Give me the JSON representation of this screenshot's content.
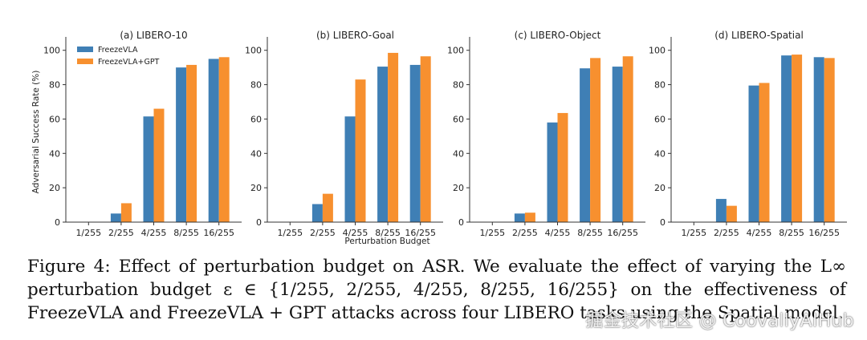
{
  "figure": {
    "caption_prefix": "Figure 4:",
    "caption_body": "Effect of perturbation budget on ASR. We evaluate the effect of varying the L∞ perturbation budget ε ∈ {1/255, 2/255, 4/255, 8/255, 16/255} on the effectiveness of FreezeVLA and FreezeVLA + GPT attacks across four LIBERO tasks using the Spatial model.",
    "watermark": "掘金技术社区 @ CoovallyAIHub"
  },
  "colors": {
    "freezevla": "#3f7fb5",
    "freezevla_gpt": "#f7902f",
    "axis": "#333333"
  },
  "chart_data": [
    {
      "type": "bar",
      "title": "(a) LIBERO-10",
      "xlabel": "",
      "ylabel": "Adversarial Success Rate (%)",
      "categories": [
        "1/255",
        "2/255",
        "4/255",
        "8/255",
        "16/255"
      ],
      "ylim": [
        0,
        105
      ],
      "yticks": [
        0,
        20,
        40,
        60,
        80,
        100
      ],
      "legend_position": "top-left",
      "series": [
        {
          "name": "FreezeVLA",
          "values": [
            0,
            5,
            61.5,
            90,
            95
          ]
        },
        {
          "name": "FreezeVLA+GPT",
          "values": [
            0,
            11,
            66,
            91.5,
            96
          ]
        }
      ]
    },
    {
      "type": "bar",
      "title": "(b) LIBERO-Goal",
      "xlabel": "Perturbation Budget",
      "ylabel": "",
      "categories": [
        "1/255",
        "2/255",
        "4/255",
        "8/255",
        "16/255"
      ],
      "ylim": [
        0,
        105
      ],
      "yticks": [
        0,
        20,
        40,
        60,
        80,
        100
      ],
      "series": [
        {
          "name": "FreezeVLA",
          "values": [
            0,
            10.5,
            61.5,
            90.5,
            91.5
          ]
        },
        {
          "name": "FreezeVLA+GPT",
          "values": [
            0,
            16.5,
            83,
            98.5,
            96.5
          ]
        }
      ]
    },
    {
      "type": "bar",
      "title": "(c) LIBERO-Object",
      "xlabel": "",
      "ylabel": "",
      "categories": [
        "1/255",
        "2/255",
        "4/255",
        "8/255",
        "16/255"
      ],
      "ylim": [
        0,
        105
      ],
      "yticks": [
        0,
        20,
        40,
        60,
        80,
        100
      ],
      "series": [
        {
          "name": "FreezeVLA",
          "values": [
            0,
            5,
            58,
            89.5,
            90.5
          ]
        },
        {
          "name": "FreezeVLA+GPT",
          "values": [
            0,
            5.5,
            63.5,
            95.5,
            96.5
          ]
        }
      ]
    },
    {
      "type": "bar",
      "title": "(d) LIBERO-Spatial",
      "xlabel": "",
      "ylabel": "",
      "categories": [
        "1/255",
        "2/255",
        "4/255",
        "8/255",
        "16/255"
      ],
      "ylim": [
        0,
        105
      ],
      "yticks": [
        0,
        20,
        40,
        60,
        80,
        100
      ],
      "series": [
        {
          "name": "FreezeVLA",
          "values": [
            0,
            13.5,
            79.5,
            97,
            96
          ]
        },
        {
          "name": "FreezeVLA+GPT",
          "values": [
            0,
            9.5,
            81,
            97.5,
            95.5
          ]
        }
      ]
    }
  ]
}
